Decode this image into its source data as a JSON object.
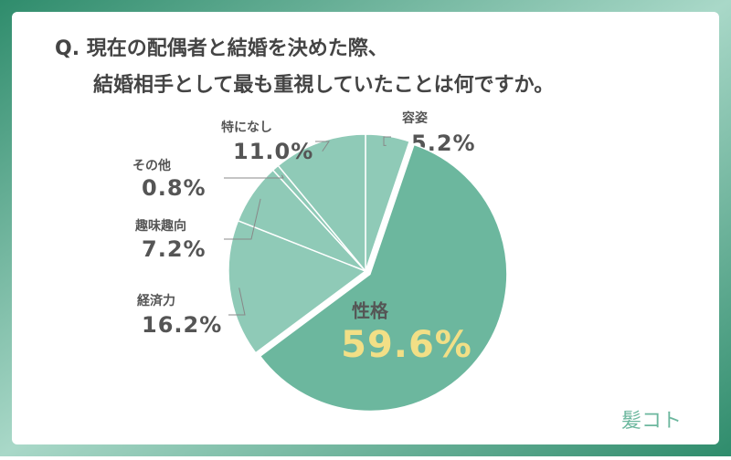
{
  "chart_data": {
    "type": "pie",
    "title": [
      "Q. 現在の配偶者と結婚を決めた際、",
      "結婚相手として最も重視していたことは何ですか。"
    ],
    "categories": [
      "容姿",
      "性格",
      "経済力",
      "趣味趣向",
      "その他",
      "特になし"
    ],
    "values": [
      5.2,
      59.6,
      16.2,
      7.2,
      0.8,
      11.0
    ],
    "value_labels": [
      "5.2%",
      "59.6%",
      "16.2%",
      "7.2%",
      "0.8%",
      "11.0%"
    ],
    "colors": [
      "#8fcab7",
      "#6cb79e",
      "#8fcab7",
      "#8fcab7",
      "#8fcab7",
      "#8fcab7"
    ],
    "brand": "髪コト"
  }
}
